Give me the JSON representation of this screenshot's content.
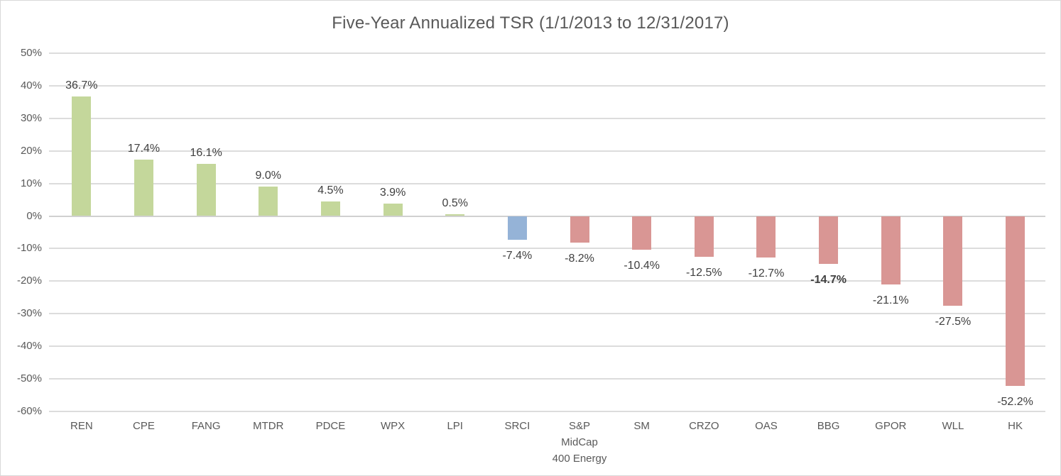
{
  "window": {
    "background": "#FFFFFF",
    "border_color": "#D9D9D9"
  },
  "chart_data": {
    "type": "bar",
    "title": "Five-Year Annualized TSR (1/1/2013 to 12/31/2017)",
    "categories": [
      "REN",
      "CPE",
      "FANG",
      "MTDR",
      "PDCE",
      "WPX",
      "LPI",
      "SRCI",
      "S&P MidCap 400 Energy",
      "SM",
      "CRZO",
      "OAS",
      "BBG",
      "GPOR",
      "WLL",
      "HK"
    ],
    "category_label_lines": [
      [
        "REN"
      ],
      [
        "CPE"
      ],
      [
        "FANG"
      ],
      [
        "MTDR"
      ],
      [
        "PDCE"
      ],
      [
        "WPX"
      ],
      [
        "LPI"
      ],
      [
        "SRCI"
      ],
      [
        "S&P",
        "MidCap",
        "400 Energy"
      ],
      [
        "SM"
      ],
      [
        "CRZO"
      ],
      [
        "OAS"
      ],
      [
        "BBG"
      ],
      [
        "GPOR"
      ],
      [
        "WLL"
      ],
      [
        "HK"
      ]
    ],
    "values": [
      36.7,
      17.4,
      16.1,
      9.0,
      4.5,
      3.9,
      0.5,
      -7.4,
      -8.2,
      -10.4,
      -12.5,
      -12.7,
      -14.7,
      -21.1,
      -27.5,
      -52.2
    ],
    "data_labels": [
      "36.7%",
      "17.4%",
      "16.1%",
      "9.0%",
      "4.5%",
      "3.9%",
      "0.5%",
      "-7.4%",
      "-8.2%",
      "-10.4%",
      "-12.5%",
      "-12.7%",
      "-14.7%",
      "-21.1%",
      "-27.5%",
      "-52.2%"
    ],
    "bold_label_index": 12,
    "bar_color_roles": [
      "positive",
      "positive",
      "positive",
      "positive",
      "positive",
      "positive",
      "positive",
      "index",
      "negative",
      "negative",
      "negative",
      "negative",
      "negative",
      "negative",
      "negative",
      "negative"
    ],
    "colors": {
      "positive": "#C4D79B",
      "negative": "#D99694",
      "index": "#95B3D7",
      "gridline": "#DCDCDC",
      "zero_axis": "#D0D0D0",
      "title_text": "#595959",
      "tick_text": "#595959",
      "label_text": "#404040"
    },
    "yticks": [
      50,
      40,
      30,
      20,
      10,
      0,
      -10,
      -20,
      -30,
      -40,
      -50,
      -60
    ],
    "ytick_labels": [
      "50%",
      "40%",
      "30%",
      "20%",
      "10%",
      "0%",
      "-10%",
      "-20%",
      "-30%",
      "-40%",
      "-50%",
      "-60%"
    ],
    "ylim": [
      -60,
      50
    ],
    "grid": true,
    "legend": "none"
  }
}
